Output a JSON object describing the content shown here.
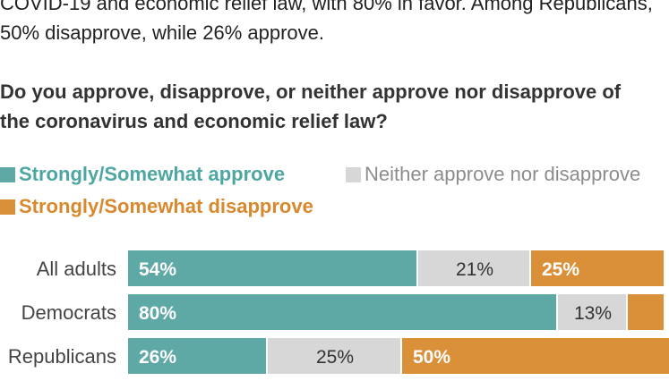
{
  "intro_text": {
    "line1": "COVID-19 and economic relief law, with 80% in favor. Among Republicans,",
    "line2": "50% disapprove, while 26% approve."
  },
  "question": {
    "line1": "Do you approve, disapprove, or neither approve nor disapprove of",
    "line2": "the coronavirus and economic relief law?"
  },
  "legend": {
    "approve": "Strongly/Somewhat approve",
    "neither": "Neither approve nor disapprove",
    "disapprove": "Strongly/Somewhat disapprove"
  },
  "colors": {
    "approve": "#5ea8a6",
    "neither": "#d7d7d7",
    "disapprove": "#d99039",
    "approve_text": "#4ea6a3",
    "neither_text": "#8c8c8c",
    "disapprove_text": "#d8892e"
  },
  "chart_data": {
    "type": "bar",
    "orientation": "horizontal",
    "stacked": true,
    "categories": [
      "All adults",
      "Democrats",
      "Republicans"
    ],
    "series": [
      {
        "name": "Strongly/Somewhat approve",
        "values": [
          54,
          80,
          26
        ],
        "labels": [
          "54%",
          "80%",
          "26%"
        ]
      },
      {
        "name": "Neither approve nor disapprove",
        "values": [
          21,
          13,
          25
        ],
        "labels": [
          "21%",
          "13%",
          "25%"
        ]
      },
      {
        "name": "Strongly/Somewhat disapprove",
        "values": [
          25,
          7,
          50
        ],
        "labels": [
          "25%",
          "",
          "50%"
        ]
      }
    ],
    "xlim": [
      0,
      100
    ],
    "legend_position": "top-left",
    "grid": false
  }
}
